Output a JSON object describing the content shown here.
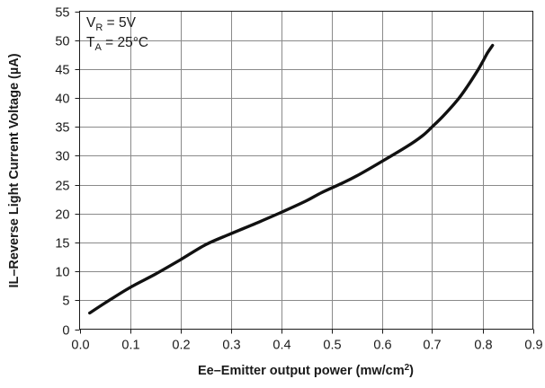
{
  "chart_data": {
    "type": "line",
    "title": "",
    "xlabel": "Ee–Emitter output power (mw/cm2)",
    "xlabel_main": "Ee–Emitter output power (mw/cm",
    "xlabel_sup": "2",
    "xlabel_tail": ")",
    "ylabel": "IL–Reverse Light Current Voltage (µA)",
    "xlim": [
      0,
      0.9
    ],
    "ylim": [
      0,
      55
    ],
    "xticks": [
      0.0,
      0.1,
      0.2,
      0.3,
      0.4,
      0.5,
      0.6,
      0.7,
      0.8,
      0.9
    ],
    "xtick_labels": [
      "0.0",
      "0.1",
      "0.2",
      "0.3",
      "0.4",
      "0.5",
      "0.6",
      "0.7",
      "0.8",
      "0.9"
    ],
    "yticks": [
      0,
      5,
      10,
      15,
      20,
      25,
      30,
      35,
      40,
      45,
      50,
      55
    ],
    "ytick_labels": [
      "0",
      "5",
      "10",
      "15",
      "20",
      "25",
      "30",
      "35",
      "40",
      "45",
      "50",
      "55"
    ],
    "grid": true,
    "annotation": {
      "line1": {
        "main": "V",
        "sub": "R",
        "rest": " = 5V"
      },
      "line2": {
        "main": "T",
        "sub": "A",
        "rest": " = 25°C"
      }
    },
    "series": [
      {
        "x": [
          0.02,
          0.05,
          0.1,
          0.15,
          0.2,
          0.25,
          0.3,
          0.35,
          0.4,
          0.45,
          0.48,
          0.52,
          0.55,
          0.6,
          0.65,
          0.68,
          0.7,
          0.72,
          0.75,
          0.77,
          0.79,
          0.8,
          0.81,
          0.82
        ],
        "values": [
          2.8,
          4.5,
          7.2,
          9.5,
          12.0,
          14.6,
          16.5,
          18.3,
          20.2,
          22.2,
          23.6,
          25.2,
          26.5,
          29.0,
          31.6,
          33.4,
          35.0,
          36.7,
          39.6,
          42.0,
          44.7,
          46.2,
          47.8,
          49.1
        ],
        "color": "#111111"
      }
    ]
  }
}
